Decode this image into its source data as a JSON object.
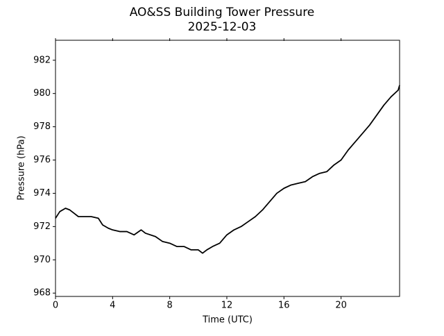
{
  "chart_data": {
    "type": "line",
    "title": "AO&SS Building Tower Pressure",
    "subtitle": "2025-12-03",
    "x_label": "Time (UTC)",
    "y_label": "Pressure (hPa)",
    "color": "#000000",
    "x": [
      0,
      0.3,
      0.7,
      1,
      1.3,
      1.6,
      2,
      2.5,
      3,
      3.3,
      3.7,
      4,
      4.5,
      5,
      5.5,
      6,
      6.3,
      7,
      7.5,
      8,
      8.5,
      9,
      9.5,
      10,
      10.3,
      10.6,
      11,
      11.5,
      12,
      12.5,
      13,
      13.5,
      14,
      14.5,
      15,
      15.5,
      16,
      16.5,
      17,
      17.5,
      18,
      18.5,
      19,
      19.5,
      20,
      20.5,
      21,
      21.5,
      22,
      22.5,
      23,
      23.5,
      24,
      24.1
    ],
    "values": [
      972.5,
      972.9,
      973.1,
      973.0,
      972.8,
      972.6,
      972.6,
      972.6,
      972.5,
      972.1,
      971.9,
      971.8,
      971.7,
      971.7,
      971.5,
      971.8,
      971.6,
      971.4,
      971.1,
      971.0,
      970.8,
      970.8,
      970.6,
      970.6,
      970.4,
      970.6,
      970.8,
      971.0,
      971.5,
      971.8,
      972.0,
      972.3,
      972.6,
      973.0,
      973.5,
      974.0,
      974.3,
      974.5,
      974.6,
      974.7,
      975.0,
      975.2,
      975.3,
      975.7,
      976.0,
      976.6,
      977.1,
      977.6,
      978.1,
      978.7,
      979.3,
      979.8,
      980.2,
      980.5
    ],
    "xlim": [
      0,
      24.1
    ],
    "xticks": [
      0,
      4,
      8,
      12,
      16,
      20
    ],
    "ylim": [
      967.8,
      983.2
    ],
    "yticks": [
      968,
      970,
      972,
      974,
      976,
      978,
      980,
      982
    ],
    "grid": false
  }
}
